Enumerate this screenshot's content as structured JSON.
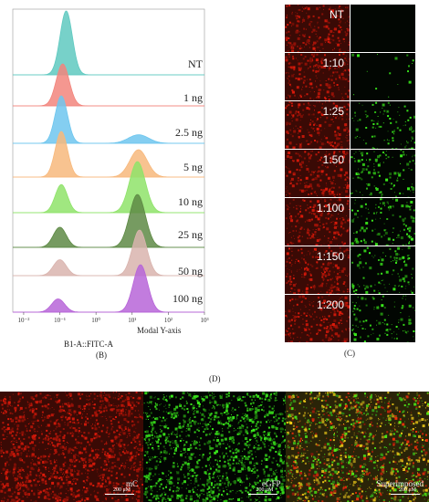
{
  "panel_b": {
    "letter": "(B)",
    "x_axis_label": "B1-A::FITC-A",
    "y_axis_label": "Modal Y-axis",
    "x_ticks": [
      "10⁻²",
      "10⁻¹",
      "10⁰",
      "10¹",
      "10²",
      "10³"
    ]
  },
  "panel_c": {
    "letter": "(C)",
    "rows": [
      {
        "label": "NT",
        "green_density": 0
      },
      {
        "label": "1:10",
        "green_density": 0.08
      },
      {
        "label": "1:25",
        "green_density": 0.45
      },
      {
        "label": "1:50",
        "green_density": 0.55
      },
      {
        "label": "1:100",
        "green_density": 0.6
      },
      {
        "label": "1:150",
        "green_density": 0.5
      },
      {
        "label": "1:200",
        "green_density": 0.5
      }
    ]
  },
  "panel_d": {
    "letter": "(D)",
    "panels": [
      {
        "label": "mC",
        "scale": "200 μM"
      },
      {
        "label": "eGFP",
        "scale": "200 μM"
      },
      {
        "label": "Superimposed",
        "scale": "200 μM"
      }
    ]
  },
  "chart_data": {
    "type": "area",
    "xlabel": "B1-A::FITC-A",
    "ylabel": "Modal Y-axis",
    "x_scale": "log",
    "xlim": [
      0.005,
      1000
    ],
    "series": [
      {
        "name": "NT",
        "color": "#5fc9c0",
        "peaks": [
          {
            "x": 0.15,
            "w": 0.17,
            "h": 1.0
          }
        ]
      },
      {
        "name": "1 ng",
        "color": "#f2857d",
        "peaks": [
          {
            "x": 0.12,
            "w": 0.18,
            "h": 1.0
          }
        ]
      },
      {
        "name": "2.5 ng",
        "color": "#6ec6ee",
        "peaks": [
          {
            "x": 0.11,
            "w": 0.17,
            "h": 1.0
          },
          {
            "x": 15,
            "w": 0.28,
            "h": 0.18
          }
        ]
      },
      {
        "name": "5 ng",
        "color": "#f7b97d",
        "peaks": [
          {
            "x": 0.11,
            "w": 0.17,
            "h": 1.0
          },
          {
            "x": 15,
            "w": 0.24,
            "h": 0.6
          }
        ]
      },
      {
        "name": "10 ng",
        "color": "#8fe36a",
        "peaks": [
          {
            "x": 0.11,
            "w": 0.17,
            "h": 0.55
          },
          {
            "x": 14,
            "w": 0.22,
            "h": 1.0
          }
        ]
      },
      {
        "name": "25 ng",
        "color": "#5e8a45",
        "peaks": [
          {
            "x": 0.1,
            "w": 0.18,
            "h": 0.38
          },
          {
            "x": 14,
            "w": 0.22,
            "h": 1.0
          }
        ]
      },
      {
        "name": "50 ng",
        "color": "#d9b4ae",
        "peaks": [
          {
            "x": 0.1,
            "w": 0.18,
            "h": 0.35
          },
          {
            "x": 16,
            "w": 0.2,
            "h": 1.0
          }
        ]
      },
      {
        "name": "100 ng",
        "color": "#b765d8",
        "peaks": [
          {
            "x": 0.09,
            "w": 0.18,
            "h": 0.28
          },
          {
            "x": 17,
            "w": 0.2,
            "h": 1.0
          }
        ]
      }
    ]
  }
}
